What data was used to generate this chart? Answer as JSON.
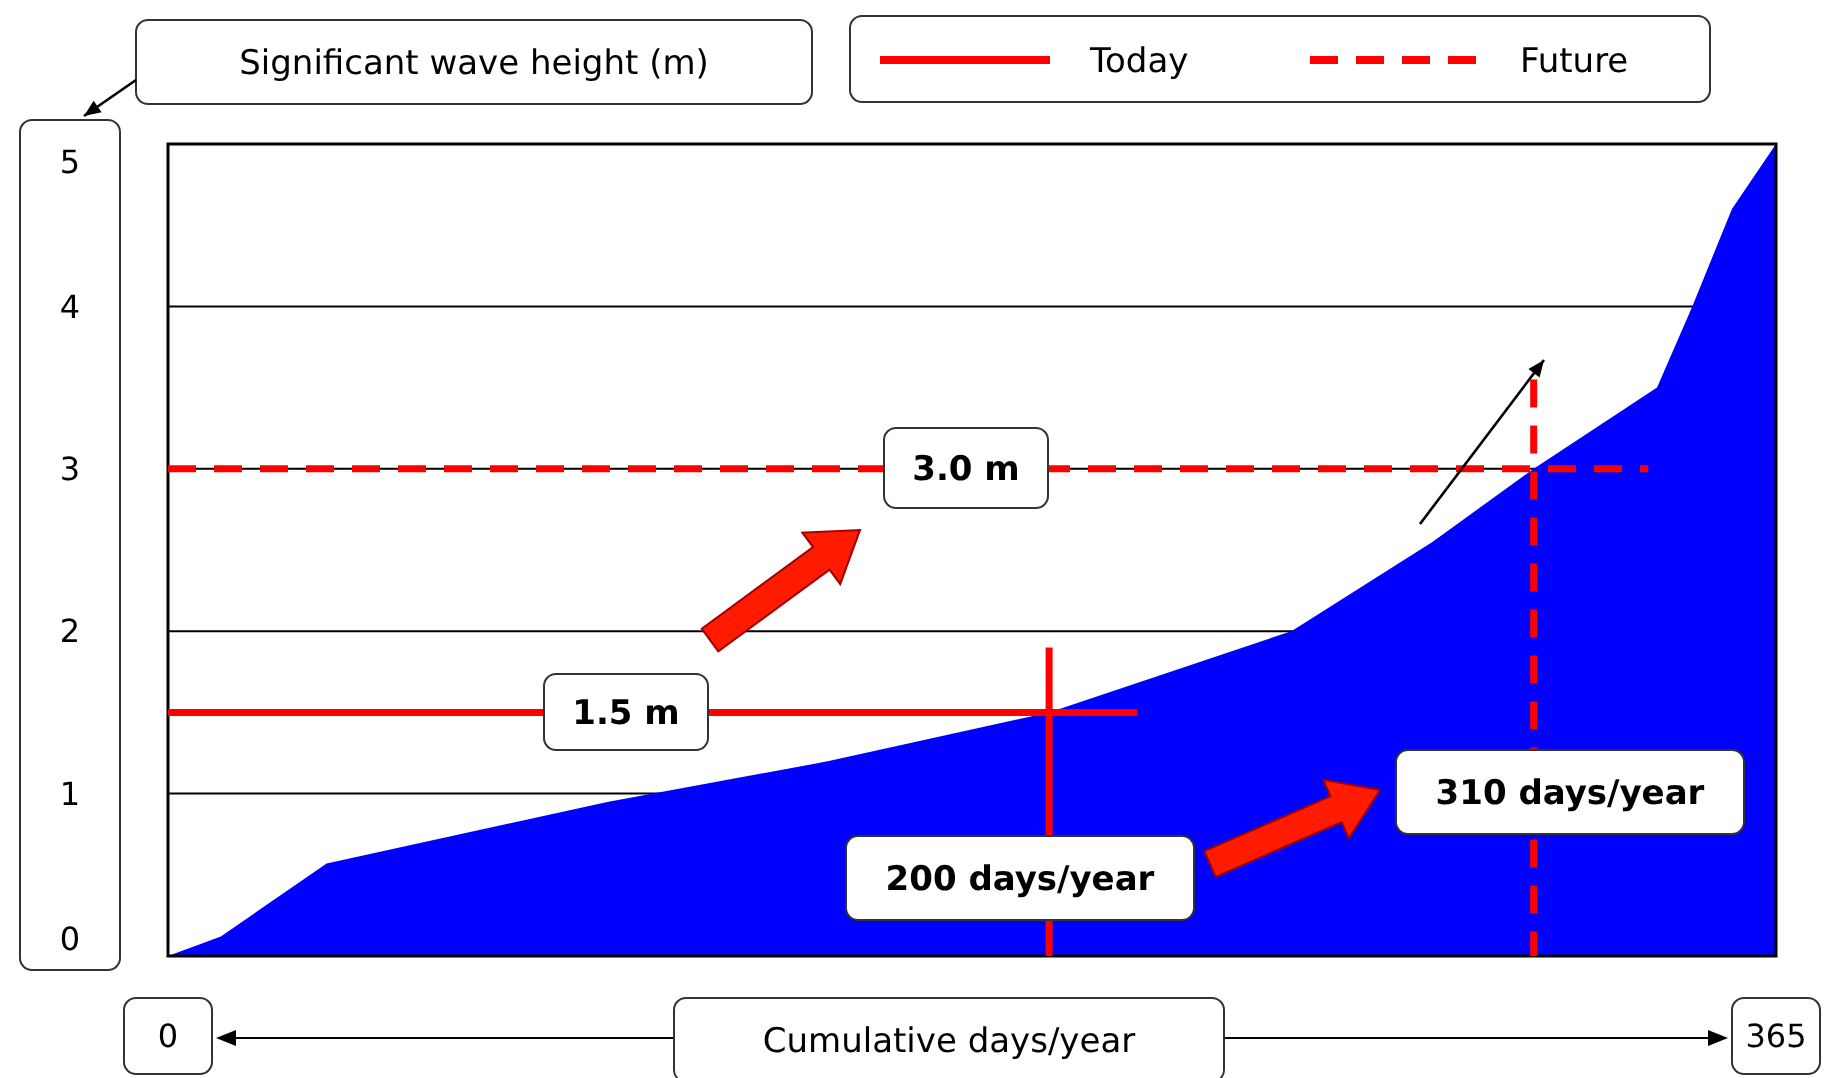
{
  "chart_data": {
    "type": "area",
    "xlabel": "Cumulative days/year",
    "ylabel": "Significant wave height (m)",
    "xlim": [
      0,
      365
    ],
    "xticks": [
      0,
      365
    ],
    "ylim": [
      0,
      5
    ],
    "yticks": [
      0,
      1,
      2,
      3,
      4,
      5
    ],
    "grid": "y",
    "legend": "top",
    "series": [
      {
        "color": "#0000ff",
        "x": [
          0,
          12,
          36,
          100,
          150,
          200,
          255,
          287,
          310,
          338,
          346,
          355,
          365
        ],
        "values": [
          0,
          0.12,
          0.57,
          0.95,
          1.2,
          1.5,
          2.0,
          2.55,
          3.0,
          3.5,
          4.0,
          4.6,
          5.0
        ]
      },
      {
        "type": "line",
        "name": "Today",
        "color": "#ff0000",
        "line_style": "solid",
        "x": [
          0,
          220
        ],
        "values": [
          1.5,
          1.5
        ]
      },
      {
        "type": "line",
        "color": "#ff0000",
        "line_style": "solid",
        "x": [
          200,
          200
        ],
        "values": [
          1.9,
          0
        ]
      },
      {
        "type": "line",
        "name": "Future",
        "color": "#ff0000",
        "line_style": "dashed",
        "x": [
          0,
          336
        ],
        "values": [
          3.0,
          3.0
        ]
      },
      {
        "type": "line",
        "color": "#ff0000",
        "line_style": "dashed",
        "x": [
          310,
          310
        ],
        "values": [
          3.55,
          0
        ]
      }
    ],
    "annotations": [
      "1.5 m",
      "3.0 m",
      "200 days/year",
      "310 days/year"
    ]
  }
}
